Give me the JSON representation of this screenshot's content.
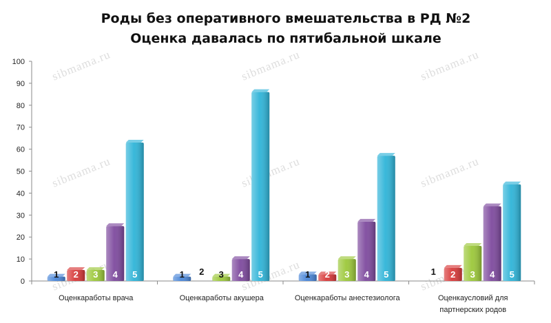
{
  "chart_data": {
    "type": "bar",
    "title": [
      "Роды без оперативного вмешательства в РД №2",
      "Оценка давалась по пятибальной шкале"
    ],
    "xlabel": "",
    "ylabel": "",
    "ylim": [
      0,
      100
    ],
    "yticks": [
      0,
      10,
      20,
      30,
      40,
      50,
      60,
      70,
      80,
      90,
      100
    ],
    "grid": false,
    "legend": "none",
    "categories": [
      [
        "Оценкаработы врача"
      ],
      [
        "Оценкаработы акушера"
      ],
      [
        "Оценкаработы анестезиолога"
      ],
      [
        "Оценкаусловий для",
        "партнерских родов"
      ]
    ],
    "series": [
      {
        "name": "1",
        "color": "#4a86d8",
        "values": [
          2,
          2,
          3,
          0
        ]
      },
      {
        "name": "2",
        "color": "#d83a3a",
        "values": [
          5,
          0,
          3,
          6
        ]
      },
      {
        "name": "3",
        "color": "#9cc83a",
        "values": [
          5,
          2,
          10,
          16
        ]
      },
      {
        "name": "4",
        "color": "#7e4a9e",
        "values": [
          25,
          10,
          27,
          34
        ]
      },
      {
        "name": "5",
        "color": "#2fb4d8",
        "values": [
          63,
          86,
          57,
          44
        ]
      }
    ],
    "label_colors": [
      "#111111",
      "#ffffff",
      "#ffffff",
      "#ffffff",
      "#ffffff"
    ],
    "watermark": "sibmama.ru"
  }
}
